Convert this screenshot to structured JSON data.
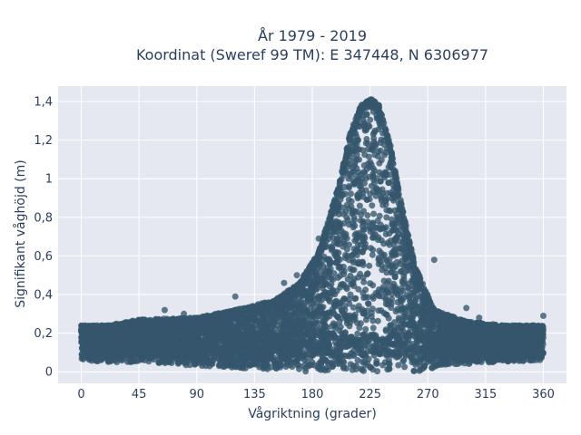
{
  "chart_data": {
    "type": "scatter",
    "title_lines": [
      "År 1979 - 2019",
      "Koordinat (Sweref 99 TM): E 347448, N 6306977"
    ],
    "xlabel": "Vågriktning (grader)",
    "ylabel": "Signifikant våghöjd (m)",
    "xlim": [
      -18,
      378
    ],
    "ylim": [
      -0.06,
      1.48
    ],
    "x_ticks": [
      0,
      45,
      90,
      135,
      180,
      225,
      270,
      315,
      360
    ],
    "x_tick_labels": [
      "0",
      "45",
      "90",
      "135",
      "180",
      "225",
      "270",
      "315",
      "360"
    ],
    "y_ticks": [
      0,
      0.2,
      0.4,
      0.6,
      0.8,
      1.0,
      1.2,
      1.4
    ],
    "y_tick_labels": [
      "0",
      "0,2",
      "0,4",
      "0,6",
      "0,8",
      "1",
      "1,2",
      "1,4"
    ],
    "grid": true,
    "legend": "none",
    "marker_color": "#34566b",
    "plot_bg": "#e5e8f0",
    "envelope": {
      "direction": [
        0,
        20,
        45,
        90,
        120,
        150,
        170,
        185,
        200,
        210,
        218,
        225,
        232,
        240,
        250,
        260,
        275,
        300,
        330,
        360
      ],
      "max_height": [
        0.24,
        0.24,
        0.27,
        0.28,
        0.32,
        0.37,
        0.46,
        0.62,
        0.95,
        1.25,
        1.38,
        1.42,
        1.38,
        1.2,
        0.85,
        0.55,
        0.32,
        0.26,
        0.24,
        0.24
      ],
      "min_height": [
        0.06,
        0.05,
        0.05,
        0.03,
        0.02,
        0.01,
        0.0,
        0.0,
        0.0,
        0.0,
        0.0,
        0.0,
        0.0,
        0.0,
        0.0,
        0.0,
        0.02,
        0.04,
        0.05,
        0.06
      ]
    },
    "outliers": [
      {
        "x": 120,
        "y": 0.39
      },
      {
        "x": 275,
        "y": 0.58
      },
      {
        "x": 168,
        "y": 0.5
      },
      {
        "x": 158,
        "y": 0.46
      },
      {
        "x": 187,
        "y": 0.64
      },
      {
        "x": 185,
        "y": 0.69
      },
      {
        "x": 252,
        "y": 0.62
      },
      {
        "x": 205,
        "y": 0.7
      },
      {
        "x": 310,
        "y": 0.28
      },
      {
        "x": 65,
        "y": 0.32
      },
      {
        "x": 80,
        "y": 0.3
      },
      {
        "x": 3,
        "y": 0.24
      },
      {
        "x": 360,
        "y": 0.29
      },
      {
        "x": 0,
        "y": 0.22
      },
      {
        "x": 138,
        "y": 0.35
      },
      {
        "x": 262,
        "y": 0.42
      },
      {
        "x": 300,
        "y": 0.33
      }
    ]
  }
}
